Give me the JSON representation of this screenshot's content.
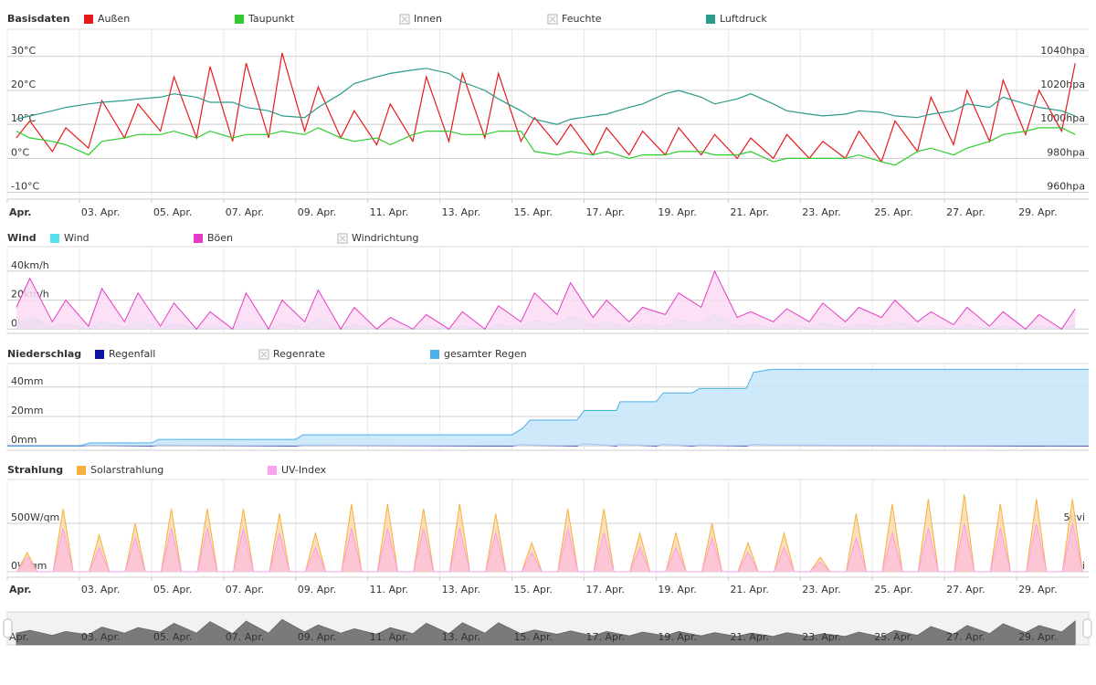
{
  "chart_data": [
    {
      "type": "line",
      "title": "Basisdaten",
      "xlim": [
        1,
        31
      ],
      "xticks": [
        {
          "value": 1,
          "label": "Apr."
        },
        {
          "value": 3,
          "label": "03. Apr."
        },
        {
          "value": 5,
          "label": "05. Apr."
        },
        {
          "value": 7,
          "label": "07. Apr."
        },
        {
          "value": 9,
          "label": "09. Apr."
        },
        {
          "value": 11,
          "label": "11. Apr."
        },
        {
          "value": 13,
          "label": "13. Apr."
        },
        {
          "value": 15,
          "label": "15. Apr."
        },
        {
          "value": 17,
          "label": "17. Apr."
        },
        {
          "value": 19,
          "label": "19. Apr."
        },
        {
          "value": 21,
          "label": "21. Apr."
        },
        {
          "value": 23,
          "label": "23. Apr."
        },
        {
          "value": 25,
          "label": "25. Apr."
        },
        {
          "value": 27,
          "label": "27. Apr."
        },
        {
          "value": 29,
          "label": "29. Apr."
        }
      ],
      "ylim": [
        -12,
        38
      ],
      "yticks": [
        {
          "value": -10,
          "label": "-10°C"
        },
        {
          "value": 0,
          "label": "0°C"
        },
        {
          "value": 10,
          "label": "10°C"
        },
        {
          "value": 20,
          "label": "20°C"
        },
        {
          "value": 30,
          "label": "30°C"
        }
      ],
      "y2lim": [
        956,
        1056
      ],
      "y2ticks": [
        {
          "value": 960,
          "label": "960hpa"
        },
        {
          "value": 980,
          "label": "980hpa"
        },
        {
          "value": 1000,
          "label": "1000hpa"
        },
        {
          "value": 1020,
          "label": "1020hpa"
        },
        {
          "value": 1040,
          "label": "1040hpa"
        }
      ],
      "grid": true,
      "x": [
        1.25,
        1.625,
        2.25,
        2.625,
        3.25,
        3.625,
        4.25,
        4.625,
        5.25,
        5.625,
        6.25,
        6.625,
        7.25,
        7.625,
        8.25,
        8.625,
        9.25,
        9.625,
        10.25,
        10.625,
        11.25,
        11.625,
        12.25,
        12.625,
        13.25,
        13.625,
        14.25,
        14.625,
        15.25,
        15.625,
        16.25,
        16.625,
        17.25,
        17.625,
        18.25,
        18.625,
        19.25,
        19.625,
        20.25,
        20.625,
        21.25,
        21.625,
        22.25,
        22.625,
        23.25,
        23.625,
        24.25,
        24.625,
        25.25,
        25.625,
        26.25,
        26.625,
        27.25,
        27.625,
        28.25,
        28.625,
        29.25,
        29.625,
        30.25,
        30.625
      ],
      "series": [
        {
          "name": "Außen",
          "color": "#e8191b",
          "values": [
            6,
            11,
            2,
            9,
            3,
            17,
            6,
            16,
            8,
            24,
            6,
            27,
            5,
            28,
            6,
            31,
            8,
            21,
            6,
            14,
            4,
            16,
            5,
            24,
            5,
            25,
            6,
            25,
            5,
            12,
            4,
            10,
            1,
            9,
            1,
            8,
            1,
            9,
            1,
            7,
            0,
            6,
            0,
            7,
            0,
            5,
            0,
            8,
            -1,
            11,
            2,
            18,
            4,
            20,
            5,
            23,
            7,
            20,
            8,
            28
          ]
        },
        {
          "name": "Taupunkt",
          "color": "#2ecc2e",
          "values": [
            8,
            6,
            5,
            4,
            1,
            5,
            6,
            7,
            7,
            8,
            6,
            8,
            6,
            7,
            7,
            8,
            7,
            9,
            6,
            5,
            6,
            4,
            7,
            8,
            8,
            7,
            7,
            8,
            8,
            2,
            1,
            2,
            1,
            2,
            0,
            1,
            1,
            2,
            2,
            1,
            1,
            2,
            -1,
            0,
            0,
            0,
            0,
            1,
            -1,
            -2,
            2,
            3,
            1,
            3,
            5,
            7,
            8,
            9,
            9,
            7
          ]
        },
        {
          "name": "Innen",
          "color": "#cccccc",
          "visible": false
        },
        {
          "name": "Feuchte",
          "color": "#cccccc",
          "visible": false
        },
        {
          "name": "Luftdruck",
          "color": "#2a9a8a",
          "axis": "y2",
          "values": [
            1003,
            1005,
            1008,
            1010,
            1012,
            1013,
            1014,
            1015,
            1016,
            1018,
            1016,
            1013,
            1013,
            1010,
            1008,
            1005,
            1004,
            1010,
            1018,
            1024,
            1028,
            1030,
            1032,
            1033,
            1030,
            1025,
            1020,
            1015,
            1008,
            1003,
            1000,
            1003,
            1005,
            1006,
            1010,
            1012,
            1018,
            1020,
            1016,
            1012,
            1015,
            1018,
            1012,
            1008,
            1006,
            1005,
            1006,
            1008,
            1007,
            1005,
            1004,
            1006,
            1008,
            1012,
            1010,
            1016,
            1012,
            1010,
            1008,
            1005
          ]
        }
      ]
    },
    {
      "type": "line",
      "title": "Wind",
      "xlim": [
        1,
        31
      ],
      "ylim": [
        -3,
        57
      ],
      "yticks": [
        {
          "value": 0,
          "label": "0km/h"
        },
        {
          "value": 20,
          "label": "20km/h"
        },
        {
          "value": 40,
          "label": "40km/h"
        }
      ],
      "grid": true,
      "x": [
        1.25,
        1.625,
        2.25,
        2.625,
        3.25,
        3.625,
        4.25,
        4.625,
        5.25,
        5.625,
        6.25,
        6.625,
        7.25,
        7.625,
        8.25,
        8.625,
        9.25,
        9.625,
        10.25,
        10.625,
        11.25,
        11.625,
        12.25,
        12.625,
        13.25,
        13.625,
        14.25,
        14.625,
        15.25,
        15.625,
        16.25,
        16.625,
        17.25,
        17.625,
        18.25,
        18.625,
        19.25,
        19.625,
        20.25,
        20.625,
        21.25,
        21.625,
        22.25,
        22.625,
        23.25,
        23.625,
        24.25,
        24.625,
        25.25,
        25.625,
        26.25,
        26.625,
        27.25,
        27.625,
        28.25,
        28.625,
        29.25,
        29.625,
        30.25,
        30.625
      ],
      "series": [
        {
          "name": "Wind",
          "color": "#56e0f0",
          "area": true,
          "fill": "#b4eef6",
          "values": [
            4,
            8,
            1,
            4,
            0,
            5,
            1,
            6,
            0,
            4,
            0,
            2,
            0,
            5,
            0,
            4,
            1,
            7,
            0,
            3,
            0,
            1,
            0,
            2,
            0,
            2,
            0,
            3,
            1,
            6,
            3,
            9,
            2,
            5,
            1,
            3,
            2,
            6,
            4,
            10,
            2,
            3,
            1,
            3,
            1,
            4,
            1,
            3,
            2,
            5,
            1,
            2,
            0,
            3,
            0,
            2,
            0,
            2,
            0,
            3
          ]
        },
        {
          "name": "Böen",
          "color": "#e33bc4",
          "area": true,
          "fill": "#fbdcf4",
          "values": [
            15,
            35,
            5,
            20,
            2,
            28,
            5,
            25,
            2,
            18,
            0,
            12,
            0,
            25,
            0,
            20,
            5,
            27,
            0,
            15,
            0,
            8,
            0,
            10,
            0,
            12,
            0,
            16,
            5,
            25,
            10,
            32,
            8,
            20,
            5,
            15,
            10,
            25,
            15,
            40,
            8,
            12,
            5,
            14,
            5,
            18,
            5,
            15,
            8,
            20,
            5,
            12,
            3,
            15,
            2,
            12,
            0,
            10,
            0,
            14
          ]
        },
        {
          "name": "Windrichtung",
          "color": "#cccccc",
          "visible": false
        }
      ]
    },
    {
      "type": "line",
      "title": "Niederschlag",
      "xlim": [
        1,
        31
      ],
      "ylim": [
        -3,
        56
      ],
      "yticks": [
        {
          "value": 0,
          "label": "0mm"
        },
        {
          "value": 20,
          "label": "20mm"
        },
        {
          "value": 40,
          "label": "40mm"
        }
      ],
      "grid": true,
      "x": [
        1,
        3,
        3.3,
        5,
        5.2,
        9,
        9.2,
        15,
        15.3,
        15.5,
        16.8,
        17,
        17.9,
        18,
        19,
        19.2,
        20,
        20.2,
        21.5,
        21.7,
        22.2,
        31
      ],
      "series": [
        {
          "name": "Regenfall",
          "color": "#0a14a0",
          "values": [
            0,
            0,
            0.5,
            0,
            0.5,
            0,
            0.5,
            0,
            1,
            0.5,
            0,
            1.5,
            0,
            1,
            0,
            1,
            0,
            0.5,
            0,
            1,
            0.5,
            0
          ]
        },
        {
          "name": "Regenrate",
          "color": "#cccccc",
          "visible": false
        },
        {
          "name": "gesamter Regen",
          "color": "#4ab0e8",
          "area": true,
          "fill": "#c6e5f8",
          "values": [
            0,
            0,
            2,
            2,
            4.4,
            4.4,
            7.5,
            7.5,
            12,
            17.5,
            17.5,
            24,
            24,
            30,
            30,
            36,
            36,
            39,
            39,
            50,
            52,
            52
          ]
        }
      ]
    },
    {
      "type": "line",
      "title": "Strahlung",
      "xlim": [
        1,
        31
      ],
      "xticks": [
        {
          "value": 1,
          "label": "Apr."
        },
        {
          "value": 3,
          "label": "03. Apr."
        },
        {
          "value": 5,
          "label": "05. Apr."
        },
        {
          "value": 7,
          "label": "07. Apr."
        },
        {
          "value": 9,
          "label": "09. Apr."
        },
        {
          "value": 11,
          "label": "11. Apr."
        },
        {
          "value": 13,
          "label": "13. Apr."
        },
        {
          "value": 15,
          "label": "15. Apr."
        },
        {
          "value": 17,
          "label": "17. Apr."
        },
        {
          "value": 19,
          "label": "19. Apr."
        },
        {
          "value": 21,
          "label": "21. Apr."
        },
        {
          "value": 23,
          "label": "23. Apr."
        },
        {
          "value": 25,
          "label": "25. Apr."
        },
        {
          "value": 27,
          "label": "27. Apr."
        },
        {
          "value": 29,
          "label": "29. Apr."
        }
      ],
      "ylim": [
        -57,
        953
      ],
      "yticks": [
        {
          "value": 0,
          "label": "0W/qm"
        },
        {
          "value": 500,
          "label": "500W/qm"
        }
      ],
      "y2lim": [
        -0.57,
        9.53
      ],
      "y2ticks": [
        {
          "value": 0,
          "label": "0uvi"
        },
        {
          "value": 5,
          "label": "5uvi"
        }
      ],
      "grid": true,
      "x": [
        1.27,
        1.55,
        1.83,
        2.27,
        2.55,
        2.83,
        3.27,
        3.55,
        3.83,
        4.27,
        4.55,
        4.83,
        5.27,
        5.55,
        5.83,
        6.27,
        6.55,
        6.83,
        7.27,
        7.55,
        7.83,
        8.27,
        8.55,
        8.83,
        9.27,
        9.55,
        9.83,
        10.27,
        10.55,
        10.83,
        11.27,
        11.55,
        11.83,
        12.27,
        12.55,
        12.83,
        13.27,
        13.55,
        13.83,
        14.27,
        14.55,
        14.83,
        15.27,
        15.55,
        15.83,
        16.27,
        16.55,
        16.83,
        17.27,
        17.55,
        17.83,
        18.27,
        18.55,
        18.83,
        19.27,
        19.55,
        19.83,
        20.27,
        20.55,
        20.83,
        21.27,
        21.55,
        21.83,
        22.27,
        22.55,
        22.83,
        23.27,
        23.55,
        23.83,
        24.27,
        24.55,
        24.83,
        25.27,
        25.55,
        25.83,
        26.27,
        26.55,
        26.83,
        27.27,
        27.55,
        27.83,
        28.27,
        28.55,
        28.83,
        29.27,
        29.55,
        29.83,
        30.27,
        30.55,
        30.83
      ],
      "series": [
        {
          "name": "Solarstrahlung",
          "color": "#f5b13c",
          "area": true,
          "fill": "#fbd9ab",
          "values": [
            0,
            200,
            0,
            0,
            650,
            0,
            0,
            380,
            0,
            0,
            500,
            0,
            0,
            650,
            0,
            0,
            650,
            0,
            0,
            650,
            0,
            0,
            600,
            0,
            0,
            400,
            0,
            0,
            700,
            0,
            0,
            700,
            0,
            0,
            650,
            0,
            0,
            700,
            0,
            0,
            600,
            0,
            0,
            300,
            0,
            0,
            650,
            0,
            0,
            650,
            0,
            0,
            400,
            0,
            0,
            400,
            0,
            0,
            500,
            0,
            0,
            300,
            0,
            0,
            400,
            0,
            0,
            150,
            0,
            0,
            600,
            0,
            0,
            700,
            0,
            0,
            750,
            0,
            0,
            800,
            0,
            0,
            700,
            0,
            0,
            750,
            0,
            0,
            750,
            0
          ]
        },
        {
          "name": "UV-Index",
          "color": "#f9a0ef",
          "axis": "y2",
          "area": true,
          "fill": "#fbc2d9",
          "values": [
            0,
            1.5,
            0,
            0,
            4.5,
            0,
            0,
            2.5,
            0,
            0,
            3.5,
            0,
            0,
            4.5,
            0,
            0,
            4.5,
            0,
            0,
            4.5,
            0,
            0,
            4,
            0,
            0,
            2.5,
            0,
            0,
            4.5,
            0,
            0,
            4.5,
            0,
            0,
            4.5,
            0,
            0,
            4.5,
            0,
            0,
            4,
            0,
            0,
            2,
            0,
            0,
            4.5,
            0,
            0,
            4,
            0,
            0,
            2.5,
            0,
            0,
            2.5,
            0,
            0,
            3.5,
            0,
            0,
            2,
            0,
            0,
            2.5,
            0,
            0,
            1,
            0,
            0,
            3.5,
            0,
            0,
            4,
            0,
            0,
            4.5,
            0,
            0,
            5,
            0,
            0,
            4.5,
            0,
            0,
            5,
            0,
            0,
            5,
            0
          ]
        }
      ]
    }
  ]
}
